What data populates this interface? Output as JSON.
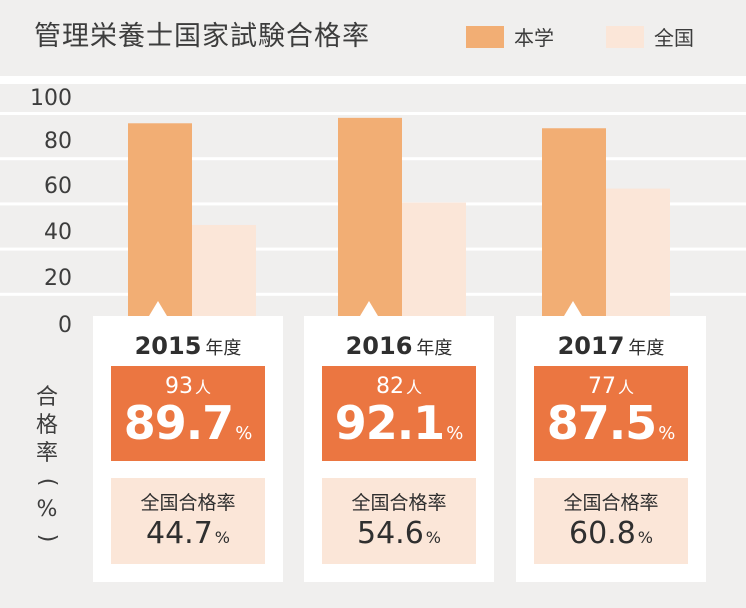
{
  "chart_data": {
    "type": "bar",
    "title": "管理栄養士国家試験合格率",
    "categories": [
      "2015",
      "2016",
      "2017"
    ],
    "category_suffix": "年度",
    "series": [
      {
        "name": "本学",
        "values": [
          89.7,
          92.1,
          87.5
        ],
        "color": "#f2ae74"
      },
      {
        "name": "全国",
        "values": [
          44.7,
          54.6,
          60.8
        ],
        "color": "#fbe6d8"
      }
    ],
    "ylabel": "合格率(%)",
    "ylim": [
      0,
      100
    ],
    "yticks": [
      "0",
      "20",
      "40",
      "60",
      "80",
      "100"
    ],
    "grid": true,
    "legend_position": "top-right"
  },
  "cards": [
    {
      "year": "2015",
      "year_suffix": "年度",
      "count": "93",
      "count_unit": "人",
      "rate": "89.7",
      "rate_unit": "%",
      "national_label": "全国合格率",
      "national_rate": "44.7",
      "national_unit": "%"
    },
    {
      "year": "2016",
      "year_suffix": "年度",
      "count": "82",
      "count_unit": "人",
      "rate": "92.1",
      "rate_unit": "%",
      "national_label": "全国合格率",
      "national_rate": "54.6",
      "national_unit": "%"
    },
    {
      "year": "2017",
      "year_suffix": "年度",
      "count": "77",
      "count_unit": "人",
      "rate": "87.5",
      "rate_unit": "%",
      "national_label": "全国合格率",
      "national_rate": "60.8",
      "national_unit": "%"
    }
  ],
  "colors": {
    "school_bar": "#f2ae74",
    "national_bar": "#fbe6d8",
    "school_box": "#eb7641",
    "national_box": "#fbe6d8",
    "background": "#f0efee"
  }
}
